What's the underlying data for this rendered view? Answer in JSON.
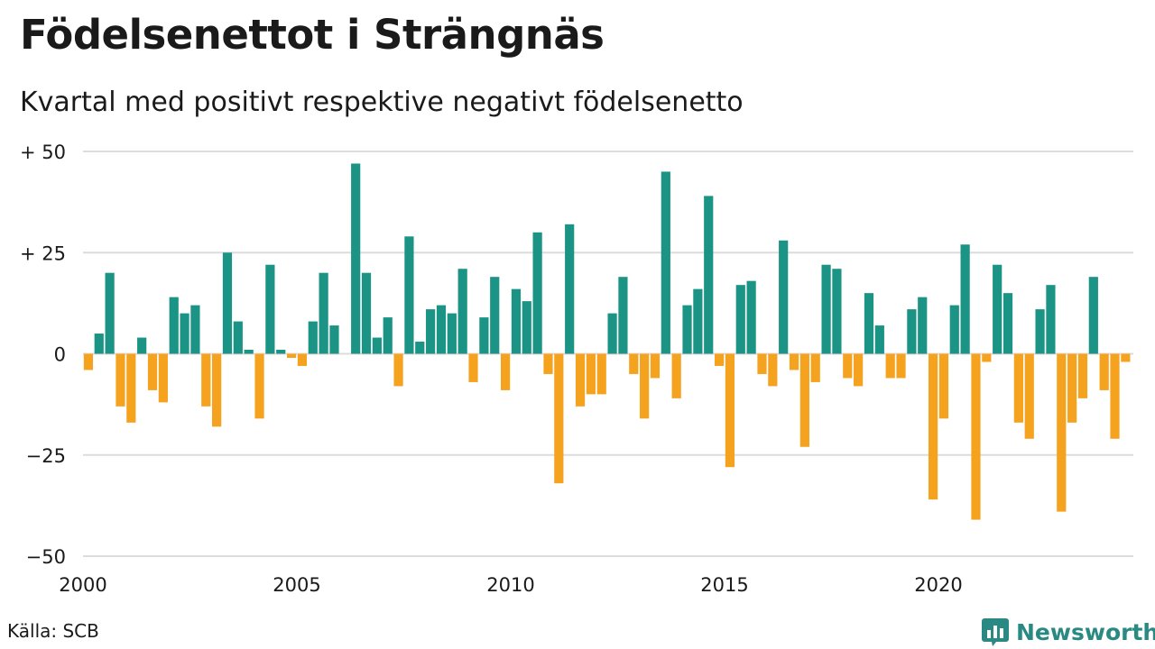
{
  "title": "Födelsenettot i Strängnäs",
  "subtitle": "Kvartal med positivt respektive negativt födelsenetto",
  "source": "Källa: SCB",
  "brand": {
    "name": "Newsworthy",
    "icon": "bar-chart-speech-bubble-icon",
    "color": "#2a8a83"
  },
  "chart_data": {
    "type": "bar",
    "x_unit": "quarter",
    "start": "2000 Q1",
    "x_tick_labels": [
      "2000",
      "2005",
      "2010",
      "2015",
      "2020"
    ],
    "y_ticks": [
      50,
      25,
      0,
      -25,
      -50
    ],
    "y_tick_labels": [
      "+ 50",
      "+ 25",
      "0",
      "−25",
      "−50"
    ],
    "ylim": [
      -50,
      50
    ],
    "grid": true,
    "colors": {
      "positive": "#1b9485",
      "negative": "#f5a21f"
    },
    "values": [
      -4,
      5,
      20,
      -13,
      -17,
      4,
      -9,
      -12,
      14,
      10,
      12,
      -13,
      -18,
      25,
      8,
      1,
      -16,
      22,
      1,
      -1,
      -3,
      8,
      20,
      7,
      0,
      47,
      20,
      4,
      9,
      -8,
      29,
      3,
      11,
      12,
      10,
      21,
      -7,
      9,
      19,
      -9,
      16,
      13,
      30,
      -5,
      -32,
      32,
      -13,
      -10,
      -10,
      10,
      19,
      -5,
      -16,
      -6,
      45,
      -11,
      12,
      16,
      39,
      -3,
      -28,
      17,
      18,
      -5,
      -8,
      28,
      -4,
      -23,
      -7,
      22,
      21,
      -6,
      -8,
      15,
      7,
      -6,
      -6,
      11,
      14,
      -36,
      -16,
      12,
      27,
      -41,
      -2,
      22,
      15,
      -17,
      -21,
      11,
      17,
      -39,
      -17,
      -11,
      19,
      -9,
      -21,
      -2
    ]
  }
}
